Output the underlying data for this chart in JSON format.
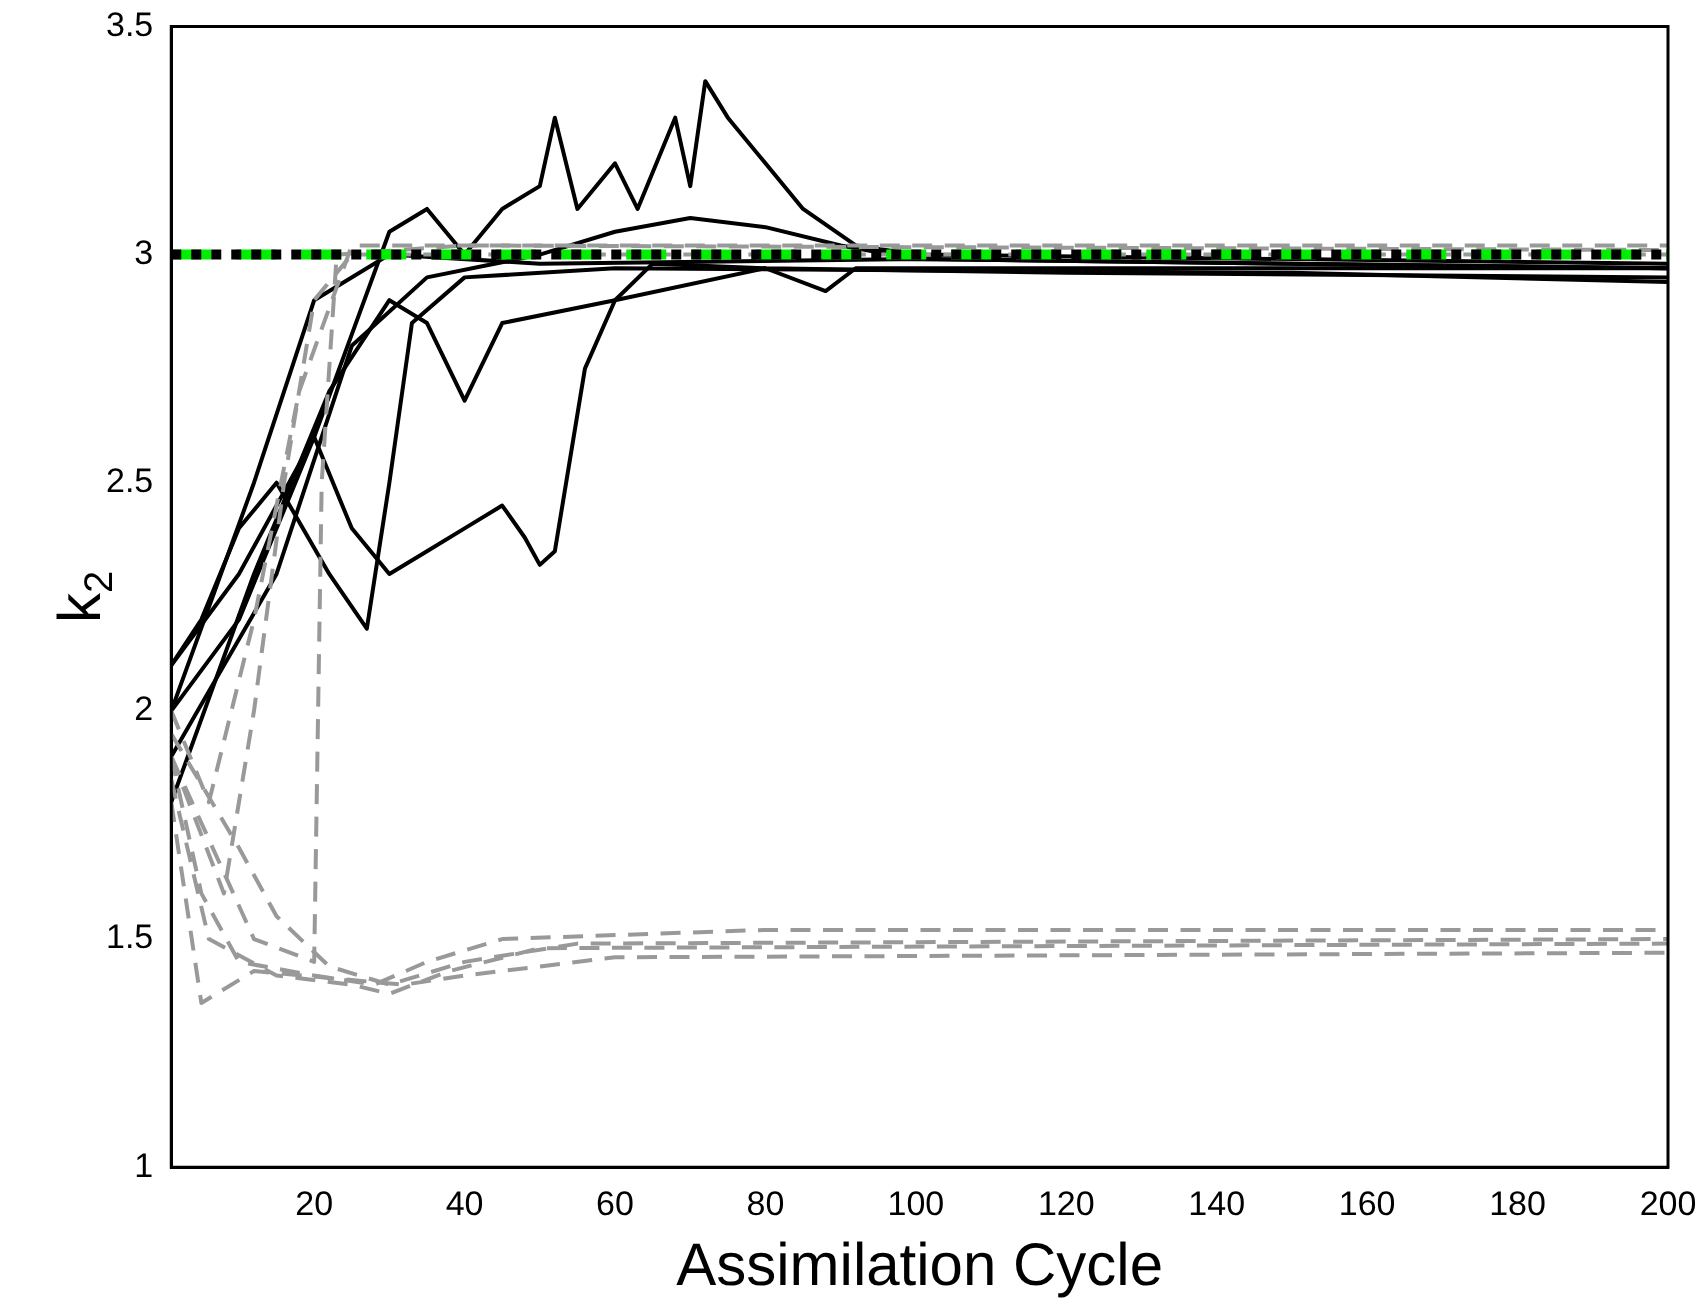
{
  "chart_data": {
    "type": "line",
    "xlabel": "Assimilation Cycle",
    "ylabel": "k$_{2}$",
    "xlim": [
      1,
      200
    ],
    "xticks": [
      20,
      40,
      60,
      80,
      100,
      120,
      140,
      160,
      180,
      200
    ],
    "ylim": [
      1,
      3.5
    ],
    "yticks": [
      1,
      1.5,
      2,
      2.5,
      3,
      3.5
    ],
    "grid": false,
    "legend": false,
    "series": [
      {
        "type": "line",
        "color": "#999999",
        "line_style": "dashed",
        "x": [
          1,
          5,
          10,
          20,
          28,
          35,
          45,
          80,
          200
        ],
        "values": [
          1.9,
          1.6,
          1.45,
          1.42,
          1.4,
          1.45,
          1.5,
          1.52,
          1.52
        ]
      },
      {
        "type": "line",
        "color": "#999999",
        "line_style": "dashed",
        "x": [
          1,
          6,
          15,
          25,
          30,
          38,
          50,
          200
        ],
        "values": [
          1.85,
          1.5,
          1.42,
          1.4,
          1.38,
          1.43,
          1.48,
          1.49
        ]
      },
      {
        "type": "line",
        "color": "#999999",
        "line_style": "dashed",
        "x": [
          1,
          5,
          12,
          25,
          32,
          40,
          60,
          200
        ],
        "values": [
          1.8,
          1.36,
          1.43,
          1.41,
          1.4,
          1.42,
          1.46,
          1.47
        ]
      },
      {
        "type": "line",
        "color": "#999999",
        "line_style": "dashed",
        "x": [
          1,
          10,
          15,
          22,
          30,
          40,
          55,
          200
        ],
        "values": [
          1.95,
          1.7,
          1.55,
          1.44,
          1.4,
          1.45,
          1.49,
          1.5
        ]
      },
      {
        "type": "line",
        "color": "#999999",
        "line_style": "dashed",
        "x": [
          1,
          8,
          12,
          16,
          20,
          25,
          200
        ],
        "values": [
          1.9,
          1.6,
          2.0,
          2.5,
          2.9,
          3.0,
          3.0
        ]
      },
      {
        "type": "line",
        "color": "#999999",
        "line_style": "dashed",
        "x": [
          1,
          12,
          20,
          21,
          23,
          40,
          200
        ],
        "values": [
          1.9,
          1.5,
          1.45,
          2.5,
          3.0,
          3.02,
          3.01
        ]
      },
      {
        "type": "line",
        "color": "#999999",
        "line_style": "dashed",
        "x": [
          1,
          6,
          12,
          18,
          25,
          200
        ],
        "values": [
          2.0,
          1.8,
          2.2,
          2.7,
          3.02,
          3.02
        ]
      },
      {
        "type": "line",
        "color": "#000000",
        "line_style": "solid",
        "x": [
          1,
          10,
          20,
          30,
          35,
          40,
          45,
          50,
          52,
          55,
          60,
          63,
          68,
          70,
          72,
          75,
          80,
          85,
          92,
          100,
          150,
          200
        ],
        "values": [
          2.1,
          2.3,
          2.6,
          3.05,
          3.1,
          3.0,
          3.1,
          3.15,
          3.3,
          3.1,
          3.2,
          3.1,
          3.3,
          3.15,
          3.38,
          3.3,
          3.2,
          3.1,
          3.02,
          3.0,
          2.99,
          2.98
        ]
      },
      {
        "type": "line",
        "color": "#000000",
        "line_style": "solid",
        "x": [
          1,
          10,
          20,
          25,
          30,
          35,
          40,
          45,
          48,
          50,
          52,
          54,
          56,
          60,
          65,
          80,
          120,
          200
        ],
        "values": [
          2.0,
          2.2,
          2.6,
          2.4,
          2.3,
          2.35,
          2.4,
          2.45,
          2.38,
          2.32,
          2.35,
          2.55,
          2.75,
          2.9,
          2.98,
          2.97,
          2.96,
          2.95
        ]
      },
      {
        "type": "line",
        "color": "#000000",
        "line_style": "solid",
        "x": [
          1,
          15,
          25,
          35,
          50,
          60,
          70,
          80,
          90,
          100,
          200
        ],
        "values": [
          1.9,
          2.3,
          2.8,
          2.95,
          3.0,
          3.05,
          3.08,
          3.06,
          3.02,
          2.99,
          2.97
        ]
      },
      {
        "type": "line",
        "color": "#000000",
        "line_style": "solid",
        "x": [
          1,
          5,
          10,
          15,
          22,
          27,
          30,
          33,
          40,
          60,
          150,
          200
        ],
        "values": [
          2.1,
          2.2,
          2.4,
          2.5,
          2.3,
          2.18,
          2.5,
          2.85,
          2.95,
          2.97,
          2.96,
          2.94
        ]
      },
      {
        "type": "line",
        "color": "#000000",
        "line_style": "solid",
        "x": [
          1,
          12,
          22,
          30,
          35,
          40,
          45,
          60,
          80,
          88,
          92,
          200
        ],
        "values": [
          1.8,
          2.3,
          2.7,
          2.9,
          2.85,
          2.68,
          2.85,
          2.9,
          2.97,
          2.92,
          2.97,
          2.97
        ]
      },
      {
        "type": "line",
        "color": "#000000",
        "line_style": "solid",
        "x": [
          1,
          12,
          20,
          30,
          50,
          100,
          200
        ],
        "values": [
          2.0,
          2.5,
          2.9,
          3.0,
          2.98,
          2.99,
          2.97
        ]
      }
    ],
    "ref_lines": [
      {
        "axis": "y",
        "value": 3,
        "color": "#00ee00",
        "line_style": "dashed"
      },
      {
        "axis": "y",
        "value": 3,
        "color": "#000000",
        "line_style": "dotted"
      }
    ]
  }
}
